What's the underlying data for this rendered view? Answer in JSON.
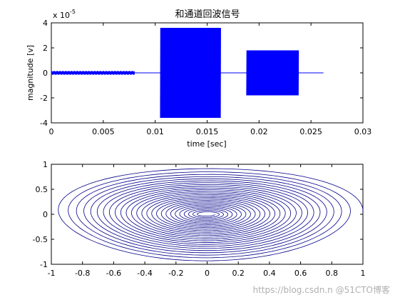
{
  "chart_data": [
    {
      "type": "line",
      "title": "和通道回波信号",
      "xlabel": "time [sec]",
      "ylabel": "magnitude [v]",
      "exponent_label": "x 10",
      "exponent_power": "-5",
      "xlim": [
        0,
        0.03
      ],
      "ylim": [
        -4,
        4
      ],
      "x_ticks": [
        "0",
        "0.005",
        "0.01",
        "0.015",
        "0.02",
        "0.025",
        "0.03"
      ],
      "y_ticks": [
        "4",
        "2",
        "0",
        "-2",
        "-4"
      ],
      "grid": false,
      "color": "#0000ff",
      "series": [
        {
          "segment": "noise",
          "x_start": 0.0,
          "x_end": 0.008,
          "amplitude": 0.15
        },
        {
          "segment": "flat",
          "x_start": 0.008,
          "x_end": 0.0105,
          "amplitude": 0.0
        },
        {
          "segment": "burst",
          "x_start": 0.0105,
          "x_end": 0.0163,
          "amplitude": 3.6
        },
        {
          "segment": "flat",
          "x_start": 0.0163,
          "x_end": 0.0188,
          "amplitude": 0.0
        },
        {
          "segment": "burst",
          "x_start": 0.0188,
          "x_end": 0.0238,
          "amplitude": 1.8
        },
        {
          "segment": "flat",
          "x_start": 0.0238,
          "x_end": 0.0262,
          "amplitude": 0.0
        }
      ]
    },
    {
      "type": "line",
      "title": "",
      "xlabel": "",
      "ylabel": "",
      "xlim": [
        -1,
        1
      ],
      "ylim": [
        -1,
        1
      ],
      "x_ticks": [
        "-1",
        "-0.8",
        "-0.6",
        "-0.4",
        "-0.2",
        "0",
        "0.2",
        "0.4",
        "0.6",
        "0.8",
        "1"
      ],
      "y_ticks": [
        "1",
        "0.5",
        "0",
        "-0.5",
        "-1"
      ],
      "grid": false,
      "color": "#00008b",
      "curve": "concentric elliptical spiral",
      "rings": 26,
      "outer_radius_x": 1.0,
      "outer_radius_y": 0.97,
      "inner_radius_x": 0.05,
      "inner_radius_y": 0.03
    }
  ],
  "watermark": {
    "url": "https://blog.csdn.n",
    "brand": "@51CTO博客"
  }
}
